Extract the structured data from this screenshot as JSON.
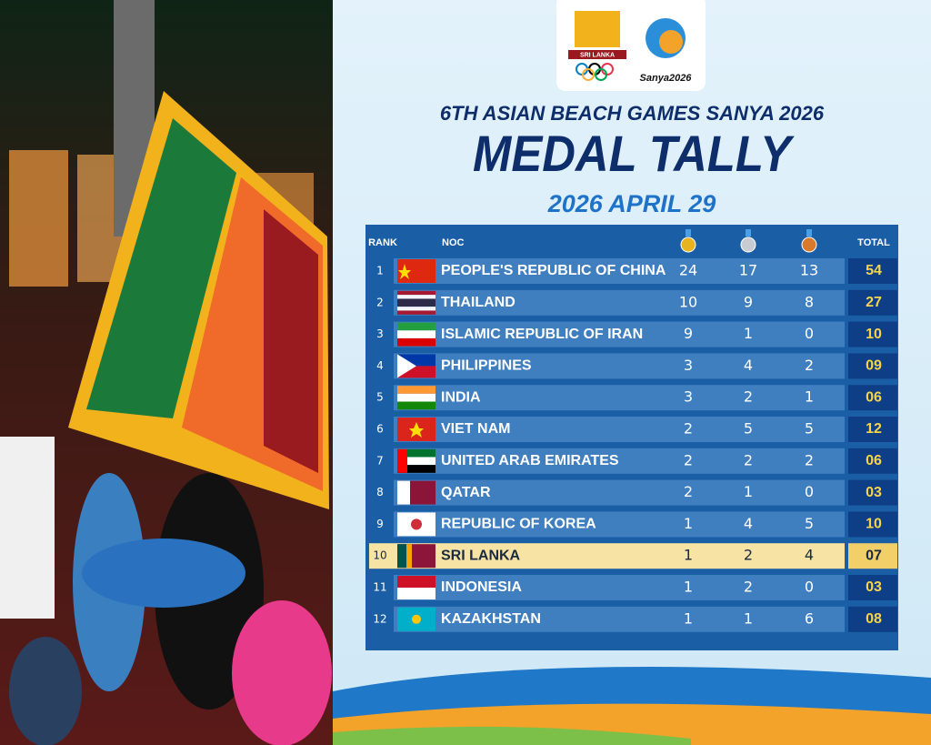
{
  "logos": {
    "sri_lanka": "SRI LANKA",
    "sanya": "Sanya2026"
  },
  "header": {
    "event": "6TH ASIAN BEACH GAMES SANYA 2026",
    "title": "MEDAL TALLY",
    "date": "2026 APRIL 29"
  },
  "table": {
    "columns": {
      "rank": "RANK",
      "noc": "NOC",
      "total": "TOTAL"
    },
    "rows": [
      {
        "rank": 1,
        "noc": "PEOPLE'S REPUBLIC OF CHINA",
        "gold": 24,
        "silver": 17,
        "bronze": 13,
        "total": "54"
      },
      {
        "rank": 2,
        "noc": "THAILAND",
        "gold": 10,
        "silver": 9,
        "bronze": 8,
        "total": "27"
      },
      {
        "rank": 3,
        "noc": "ISLAMIC REPUBLIC OF IRAN",
        "gold": 9,
        "silver": 1,
        "bronze": 0,
        "total": "10"
      },
      {
        "rank": 4,
        "noc": "PHILIPPINES",
        "gold": 3,
        "silver": 4,
        "bronze": 2,
        "total": "09"
      },
      {
        "rank": 5,
        "noc": "INDIA",
        "gold": 3,
        "silver": 2,
        "bronze": 1,
        "total": "06"
      },
      {
        "rank": 6,
        "noc": "VIET NAM",
        "gold": 2,
        "silver": 5,
        "bronze": 5,
        "total": "12"
      },
      {
        "rank": 7,
        "noc": "UNITED ARAB EMIRATES",
        "gold": 2,
        "silver": 2,
        "bronze": 2,
        "total": "06"
      },
      {
        "rank": 8,
        "noc": "QATAR",
        "gold": 2,
        "silver": 1,
        "bronze": 0,
        "total": "03"
      },
      {
        "rank": 9,
        "noc": "REPUBLIC OF KOREA",
        "gold": 1,
        "silver": 4,
        "bronze": 5,
        "total": "10"
      },
      {
        "rank": 10,
        "noc": "SRI LANKA",
        "gold": 1,
        "silver": 2,
        "bronze": 4,
        "total": "07",
        "highlight": true
      },
      {
        "rank": 11,
        "noc": "INDONESIA",
        "gold": 1,
        "silver": 2,
        "bronze": 0,
        "total": "03"
      },
      {
        "rank": 12,
        "noc": "KAZAKHSTAN",
        "gold": 1,
        "silver": 1,
        "bronze": 6,
        "total": "08"
      }
    ]
  }
}
